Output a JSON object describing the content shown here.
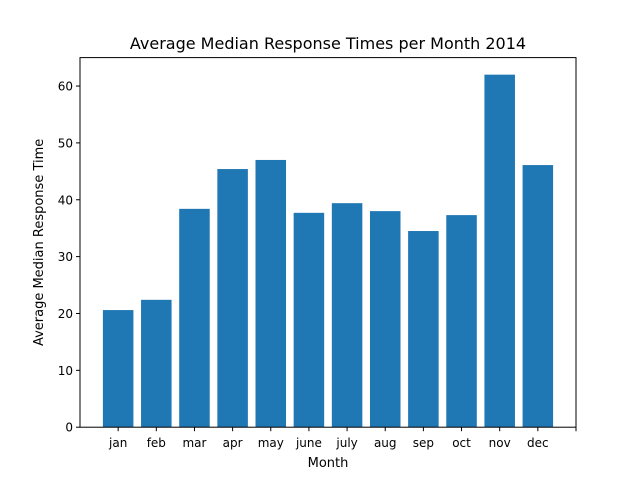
{
  "chart_data": {
    "type": "bar",
    "title": "Average Median Response Times per Month 2014",
    "xlabel": "Month",
    "ylabel": "Average Median Response Time",
    "categories": [
      "jan",
      "feb",
      "mar",
      "apr",
      "may",
      "june",
      "july",
      "aug",
      "sep",
      "oct",
      "nov",
      "dec"
    ],
    "values": [
      20.6,
      22.4,
      38.4,
      45.4,
      47.0,
      37.7,
      39.4,
      38.0,
      34.5,
      37.3,
      62.0,
      46.1
    ],
    "ylim": [
      0,
      65
    ],
    "yticks": [
      0,
      10,
      20,
      30,
      40,
      50,
      60
    ],
    "bar_color": "#1f77b4",
    "grid": false,
    "legend": "none"
  }
}
